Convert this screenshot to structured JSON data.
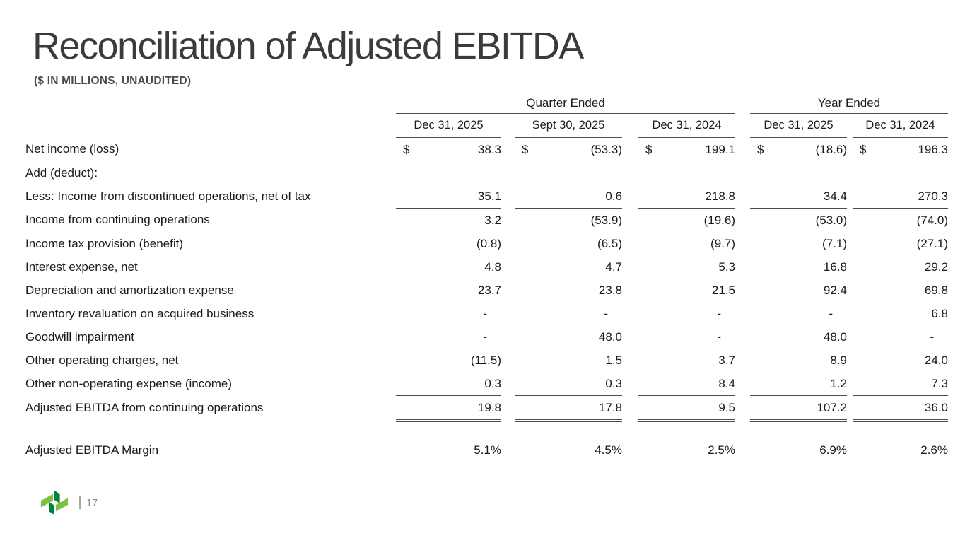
{
  "slide": {
    "title": "Reconciliation of Adjusted EBITDA",
    "subtitle": "($ IN MILLIONS, UNAUDITED)",
    "footer": {
      "page_number": "17",
      "logo_icon": "green-pinwheel-logo"
    },
    "colors": {
      "logo_light_green": "#7CC142",
      "logo_dark_green": "#00823C",
      "rule_gray": "#4d4d4d",
      "title_gray": "#3b3b3b",
      "body_text": "#1a1a1a"
    }
  },
  "table": {
    "currency_symbol": "$",
    "groups": [
      {
        "label": "Quarter Ended",
        "span": 3
      },
      {
        "label": "Year Ended",
        "span": 2
      }
    ],
    "columns": [
      "Dec 31, 2025",
      "Sept 30, 2025",
      "Dec 31, 2024",
      "Dec 31, 2025",
      "Dec 31, 2024"
    ],
    "rows": [
      {
        "label": "Net income (loss)",
        "dollar": true,
        "values": [
          "38.3",
          "(53.3)",
          "199.1",
          "(18.6)",
          "196.3"
        ]
      },
      {
        "label": "Add (deduct):",
        "values": [
          "",
          "",
          "",
          "",
          ""
        ]
      },
      {
        "label": "Less: Income from discontinued operations, net of tax",
        "underline": true,
        "values": [
          "35.1",
          "0.6",
          "218.8",
          "34.4",
          "270.3"
        ]
      },
      {
        "label": "Income from continuing operations",
        "values": [
          "3.2",
          "(53.9)",
          "(19.6)",
          "(53.0)",
          "(74.0)"
        ]
      },
      {
        "label": "Income tax provision (benefit)",
        "values": [
          "(0.8)",
          "(6.5)",
          "(9.7)",
          "(7.1)",
          "(27.1)"
        ]
      },
      {
        "label": "Interest expense, net",
        "values": [
          "4.8",
          "4.7",
          "5.3",
          "16.8",
          "29.2"
        ]
      },
      {
        "label": "Depreciation and amortization expense",
        "values": [
          "23.7",
          "23.8",
          "21.5",
          "92.4",
          "69.8"
        ]
      },
      {
        "label": "Inventory revaluation on acquired business",
        "values": [
          "-",
          "-",
          "-",
          "-",
          "6.8"
        ]
      },
      {
        "label": "Goodwill impairment",
        "values": [
          "-",
          "48.0",
          "-",
          "48.0",
          "-"
        ]
      },
      {
        "label": "Other operating charges, net",
        "values": [
          "(11.5)",
          "1.5",
          "3.7",
          "8.9",
          "24.0"
        ]
      },
      {
        "label": "Other non-operating expense (income)",
        "underline": true,
        "values": [
          "0.3",
          "0.3",
          "8.4",
          "1.2",
          "7.3"
        ]
      },
      {
        "label": "Adjusted EBITDA from continuing operations",
        "double_underline": true,
        "values": [
          "19.8",
          "17.8",
          "9.5",
          "107.2",
          "36.0"
        ]
      },
      {
        "spacer": true
      },
      {
        "label": "Adjusted EBITDA Margin",
        "values": [
          "5.1%",
          "4.5%",
          "2.5%",
          "6.9%",
          "2.6%"
        ]
      }
    ]
  }
}
